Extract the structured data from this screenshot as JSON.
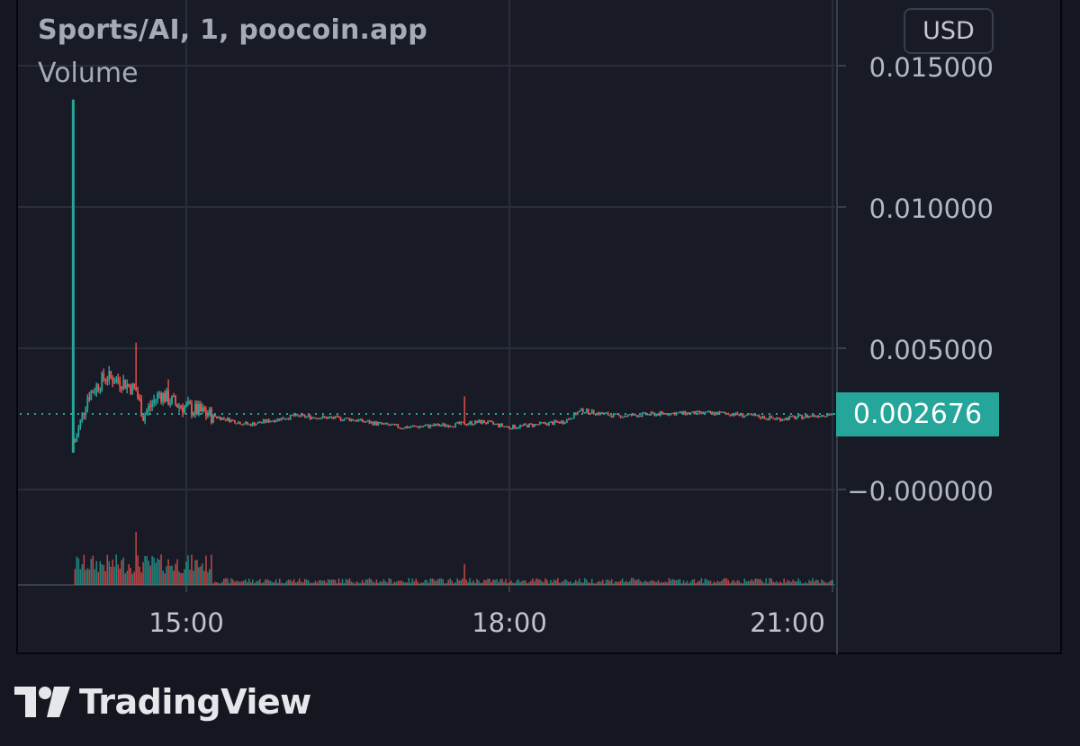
{
  "legend": {
    "title": "Sports/AI, 1, poocoin.app",
    "volume_label": "Volume"
  },
  "currency_button": "USD",
  "price_axis": {
    "labels": [
      "0.015000",
      "0.010000",
      "0.005000",
      "−0.000000"
    ]
  },
  "current_price": "0.002676",
  "time_axis": {
    "labels": [
      "15:00",
      "18:00",
      "21:00"
    ]
  },
  "brand": {
    "name": "TradingView",
    "logo_icon": "tradingview-logo-icon"
  },
  "colors": {
    "up": "#26a69a",
    "down": "#ef5350",
    "background": "#181a25",
    "grid": "#2a2e3a"
  },
  "chart_data": {
    "type": "candlestick",
    "title": "Sports/AI, 1, poocoin.app",
    "currency": "USD",
    "ylim": [
      -0.0005,
      0.015
    ],
    "yticks": [
      0.015,
      0.01,
      0.005,
      0.0
    ],
    "xticks": [
      "15:00",
      "18:00",
      "21:00"
    ],
    "x_range": [
      "13:57",
      "21:00"
    ],
    "last_price": 0.002676,
    "price_path": [
      {
        "time": "13:57",
        "price": 0.0013
      },
      {
        "time": "13:57",
        "price": 0.0138
      },
      {
        "time": "13:58",
        "price": 0.0017
      },
      {
        "time": "14:05",
        "price": 0.0033
      },
      {
        "time": "14:15",
        "price": 0.004
      },
      {
        "time": "14:25",
        "price": 0.0038
      },
      {
        "time": "14:32",
        "price": 0.0035
      },
      {
        "time": "14:36",
        "price": 0.0026
      },
      {
        "time": "14:45",
        "price": 0.0034
      },
      {
        "time": "14:55",
        "price": 0.003
      },
      {
        "time": "15:15",
        "price": 0.0026
      },
      {
        "time": "15:35",
        "price": 0.0023
      },
      {
        "time": "16:00",
        "price": 0.0026
      },
      {
        "time": "16:30",
        "price": 0.0025
      },
      {
        "time": "17:00",
        "price": 0.0022
      },
      {
        "time": "17:30",
        "price": 0.0023
      },
      {
        "time": "17:45",
        "price": 0.0024
      },
      {
        "time": "18:00",
        "price": 0.0022
      },
      {
        "time": "18:30",
        "price": 0.0024
      },
      {
        "time": "18:40",
        "price": 0.0028
      },
      {
        "time": "19:00",
        "price": 0.0026
      },
      {
        "time": "19:30",
        "price": 0.0027
      },
      {
        "time": "20:00",
        "price": 0.0027
      },
      {
        "time": "20:15",
        "price": 0.0026
      },
      {
        "time": "20:30",
        "price": 0.0025
      },
      {
        "time": "21:00",
        "price": 0.002676
      }
    ],
    "spikes": [
      {
        "time": "14:32",
        "high": 0.0052
      },
      {
        "time": "14:50",
        "high": 0.0039
      },
      {
        "time": "17:35",
        "high": 0.0033
      }
    ],
    "volume": {
      "label": "Volume",
      "peaks": [
        {
          "time": "13:57",
          "value": 1.0
        },
        {
          "time": "14:32",
          "value": 0.38
        },
        {
          "time": "17:35",
          "value": 0.15
        }
      ]
    }
  }
}
